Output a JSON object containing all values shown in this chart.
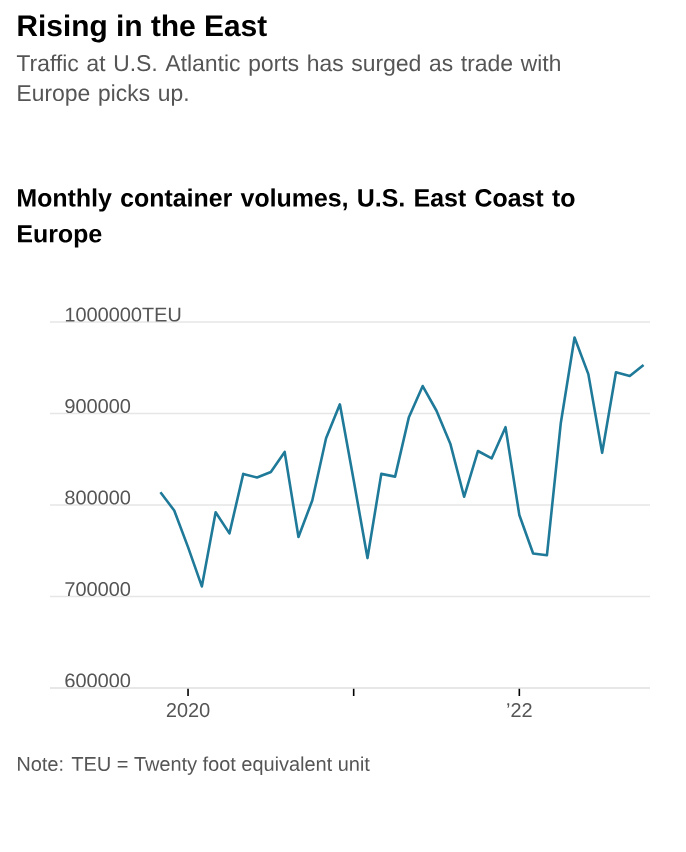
{
  "chart_data": {
    "type": "line",
    "title": "Rising in the East",
    "subtitle": "Traffic at U.S. Atlantic ports has surged as trade with Europe picks up.",
    "ylabel": "Monthly container volumes, U.S. East Coast to Europe",
    "annotations": [
      "Note: TEU = Twenty foot equivalent unit"
    ],
    "x": [
      "2019-11",
      "2019-12",
      "2020-01",
      "2020-02",
      "2020-03",
      "2020-04",
      "2020-05",
      "2020-06",
      "2020-07",
      "2020-08",
      "2020-09",
      "2020-10",
      "2020-11",
      "2020-12",
      "2021-01",
      "2021-02",
      "2021-03",
      "2021-04",
      "2021-05",
      "2021-06",
      "2021-07",
      "2021-08",
      "2021-09",
      "2021-10",
      "2021-11",
      "2021-12",
      "2022-01",
      "2022-02",
      "2022-03",
      "2022-04",
      "2022-05",
      "2022-06",
      "2022-07",
      "2022-08",
      "2022-09",
      "2022-10"
    ],
    "series": [
      {
        "color": "#1f7a99",
        "values": [
          814000,
          794000,
          754000,
          711000,
          792000,
          769000,
          834000,
          830000,
          836000,
          858000,
          765000,
          805000,
          873000,
          910000,
          827000,
          742000,
          834000,
          831000,
          896000,
          930000,
          903000,
          867000,
          809000,
          859000,
          851000,
          885000,
          789000,
          747000,
          745000,
          889000,
          983000,
          943000,
          857000,
          945000,
          941000,
          953000
        ]
      }
    ],
    "xlim": [
      "2019-03",
      "2022-10-15"
    ],
    "xticks": [
      {
        "value": "2020-01",
        "label": "2020"
      },
      {
        "value": "2021-01",
        "label": null
      },
      {
        "value": "2022-01",
        "label": "’22"
      }
    ],
    "ylim": [
      600000,
      1000000
    ],
    "yticks": [
      600000,
      700000,
      800000,
      900000,
      {
        "value": 1000000,
        "label": "1000000TEU"
      }
    ],
    "grid": "y",
    "line_style": "solid"
  }
}
